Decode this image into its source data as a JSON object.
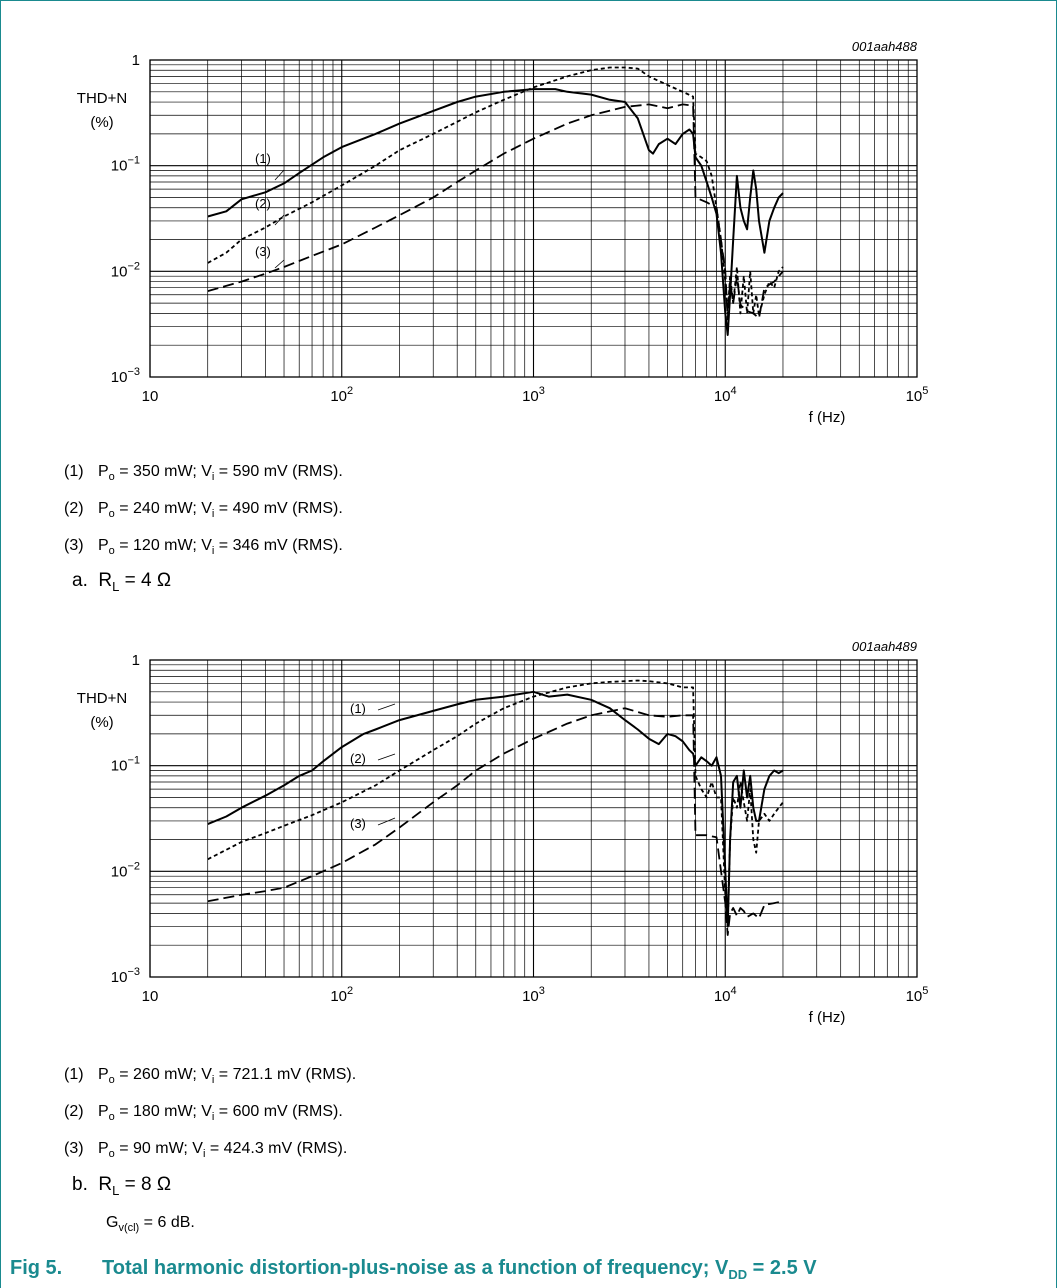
{
  "figure": {
    "number": "Fig 5.",
    "title": "Total harmonic distortion-plus-noise as a function of frequency; V",
    "title_sub": "DD",
    "title_tail": " = 2.5 V"
  },
  "chart_data": [
    {
      "type": "line",
      "id": "001aah488",
      "ylabel": "THD+N",
      "ylabel_unit": "(%)",
      "xlabel": "f (Hz)",
      "xscale": "log",
      "yscale": "log",
      "xlim": [
        10,
        100000
      ],
      "ylim": [
        0.001,
        1
      ],
      "x_ticks": [
        {
          "base": "10",
          "exp": ""
        },
        {
          "base": "10",
          "exp": "2"
        },
        {
          "base": "10",
          "exp": "3"
        },
        {
          "base": "10",
          "exp": "4"
        },
        {
          "base": "10",
          "exp": "5"
        }
      ],
      "y_ticks": [
        {
          "base": "1",
          "exp": ""
        },
        {
          "base": "10",
          "exp": "−1"
        },
        {
          "base": "10",
          "exp": "−2"
        },
        {
          "base": "10",
          "exp": "−3"
        }
      ],
      "grid": true,
      "series": [
        {
          "name": "(1)",
          "style": "solid",
          "x": [
            20,
            25,
            30,
            40,
            50,
            60,
            80,
            100,
            150,
            200,
            300,
            400,
            500,
            700,
            1000,
            1300,
            1500,
            2000,
            2500,
            3000,
            3500,
            4000,
            4200,
            4500,
            5000,
            5500,
            6000,
            6500,
            6800,
            7000,
            7500,
            8000,
            8500,
            9000,
            9500,
            10000,
            10300,
            10600,
            11000,
            11500,
            12000,
            12500,
            13000,
            13500,
            14000,
            14500,
            15000,
            16000,
            17000,
            18000,
            19000,
            20000
          ],
          "y": [
            0.033,
            0.037,
            0.048,
            0.056,
            0.068,
            0.085,
            0.12,
            0.15,
            0.2,
            0.25,
            0.33,
            0.4,
            0.45,
            0.5,
            0.53,
            0.53,
            0.5,
            0.47,
            0.42,
            0.4,
            0.28,
            0.14,
            0.13,
            0.16,
            0.18,
            0.16,
            0.2,
            0.22,
            0.2,
            0.12,
            0.1,
            0.07,
            0.05,
            0.035,
            0.015,
            0.004,
            0.0025,
            0.006,
            0.02,
            0.08,
            0.04,
            0.03,
            0.025,
            0.05,
            0.09,
            0.06,
            0.03,
            0.015,
            0.03,
            0.04,
            0.05,
            0.055
          ]
        },
        {
          "name": "(2)",
          "style": "dotted",
          "x": [
            20,
            25,
            30,
            40,
            50,
            70,
            100,
            150,
            200,
            300,
            400,
            500,
            700,
            1000,
            1500,
            2000,
            2500,
            3000,
            3500,
            4000,
            5000,
            6000,
            6800,
            7000,
            7500,
            8000,
            8500,
            9000,
            9500,
            10000,
            10300,
            10600,
            11000,
            11500,
            12000,
            12500,
            13000,
            13500,
            14000,
            14500,
            15000,
            16000,
            17000,
            18000,
            19000,
            20000
          ],
          "y": [
            0.012,
            0.015,
            0.02,
            0.026,
            0.033,
            0.045,
            0.065,
            0.1,
            0.14,
            0.2,
            0.26,
            0.32,
            0.42,
            0.55,
            0.7,
            0.8,
            0.85,
            0.85,
            0.83,
            0.7,
            0.58,
            0.5,
            0.45,
            0.13,
            0.12,
            0.11,
            0.08,
            0.04,
            0.02,
            0.008,
            0.004,
            0.009,
            0.005,
            0.011,
            0.004,
            0.009,
            0.004,
            0.01,
            0.004,
            0.006,
            0.0038,
            0.006,
            0.008,
            0.007,
            0.01,
            0.011
          ]
        },
        {
          "name": "(3)",
          "style": "dashed",
          "x": [
            20,
            30,
            40,
            50,
            70,
            100,
            150,
            200,
            300,
            400,
            500,
            700,
            1000,
            1500,
            2000,
            3000,
            4000,
            5000,
            6000,
            6800,
            7000,
            8000,
            9000,
            10000,
            10300,
            10600,
            11000,
            11500,
            12000,
            12500,
            13000,
            14000,
            15000,
            16000,
            18000,
            20000
          ],
          "y": [
            0.0065,
            0.008,
            0.0095,
            0.011,
            0.014,
            0.018,
            0.026,
            0.034,
            0.05,
            0.07,
            0.09,
            0.13,
            0.18,
            0.25,
            0.3,
            0.36,
            0.38,
            0.35,
            0.38,
            0.37,
            0.05,
            0.045,
            0.04,
            0.01,
            0.0035,
            0.008,
            0.005,
            0.009,
            0.0048,
            0.0045,
            0.0042,
            0.004,
            0.0036,
            0.007,
            0.008,
            0.01
          ]
        }
      ],
      "notes": [
        {
          "num": "(1)",
          "text": "P_o = 350 mW; V_i = 590 mV (RMS)."
        },
        {
          "num": "(2)",
          "text": "P_o = 240 mW; V_i = 490 mV (RMS)."
        },
        {
          "num": "(3)",
          "text": "P_o = 120 mW; V_i = 346 mV (RMS)."
        }
      ],
      "caption_letter": "a.",
      "caption_r": "R",
      "caption_r_sub": "L",
      "caption_value": " = 4 Ω"
    },
    {
      "type": "line",
      "id": "001aah489",
      "ylabel": "THD+N",
      "ylabel_unit": "(%)",
      "xlabel": "f (Hz)",
      "xscale": "log",
      "yscale": "log",
      "xlim": [
        10,
        100000
      ],
      "ylim": [
        0.001,
        1
      ],
      "x_ticks": [
        {
          "base": "10",
          "exp": ""
        },
        {
          "base": "10",
          "exp": "2"
        },
        {
          "base": "10",
          "exp": "3"
        },
        {
          "base": "10",
          "exp": "4"
        },
        {
          "base": "10",
          "exp": "5"
        }
      ],
      "y_ticks": [
        {
          "base": "1",
          "exp": ""
        },
        {
          "base": "10",
          "exp": "−1"
        },
        {
          "base": "10",
          "exp": "−2"
        },
        {
          "base": "10",
          "exp": "−3"
        }
      ],
      "grid": true,
      "series": [
        {
          "name": "(1)",
          "style": "solid",
          "x": [
            20,
            25,
            30,
            40,
            50,
            60,
            70,
            80,
            100,
            130,
            150,
            200,
            300,
            400,
            500,
            700,
            1000,
            1200,
            1500,
            2000,
            2500,
            3000,
            3500,
            4000,
            4500,
            5000,
            5500,
            6000,
            6500,
            6800,
            7000,
            7500,
            8000,
            8500,
            9000,
            9500,
            10000,
            10300,
            10600,
            11000,
            11500,
            12000,
            12500,
            13000,
            13500,
            14000,
            14500,
            15000,
            16000,
            17000,
            18000,
            19000,
            20000
          ],
          "y": [
            0.028,
            0.033,
            0.04,
            0.052,
            0.065,
            0.08,
            0.09,
            0.11,
            0.15,
            0.2,
            0.22,
            0.27,
            0.33,
            0.38,
            0.42,
            0.45,
            0.5,
            0.45,
            0.47,
            0.42,
            0.35,
            0.27,
            0.22,
            0.18,
            0.16,
            0.2,
            0.19,
            0.17,
            0.14,
            0.13,
            0.1,
            0.12,
            0.11,
            0.1,
            0.12,
            0.08,
            0.01,
            0.003,
            0.02,
            0.07,
            0.08,
            0.04,
            0.09,
            0.05,
            0.08,
            0.04,
            0.03,
            0.03,
            0.06,
            0.08,
            0.09,
            0.085,
            0.09
          ]
        },
        {
          "name": "(2)",
          "style": "dotted",
          "x": [
            20,
            25,
            30,
            40,
            50,
            70,
            100,
            150,
            200,
            300,
            400,
            500,
            700,
            1000,
            1500,
            2000,
            2500,
            3000,
            3500,
            4000,
            5000,
            6000,
            6800,
            7000,
            7500,
            8000,
            8500,
            9000,
            9500,
            10000,
            10300,
            10600,
            11000,
            11500,
            12000,
            12500,
            13000,
            13500,
            14000,
            14500,
            15000,
            16000,
            17000,
            18000,
            19000,
            20000
          ],
          "y": [
            0.013,
            0.016,
            0.019,
            0.023,
            0.027,
            0.034,
            0.045,
            0.065,
            0.09,
            0.14,
            0.19,
            0.25,
            0.35,
            0.45,
            0.55,
            0.6,
            0.62,
            0.63,
            0.64,
            0.63,
            0.6,
            0.55,
            0.55,
            0.08,
            0.06,
            0.05,
            0.07,
            0.05,
            0.05,
            0.006,
            0.003,
            0.02,
            0.05,
            0.04,
            0.07,
            0.045,
            0.03,
            0.06,
            0.02,
            0.015,
            0.03,
            0.035,
            0.03,
            0.035,
            0.04,
            0.045
          ]
        },
        {
          "name": "(3)",
          "style": "dashed",
          "x": [
            20,
            30,
            40,
            50,
            70,
            100,
            150,
            200,
            300,
            400,
            500,
            700,
            1000,
            1500,
            2000,
            3000,
            4000,
            5000,
            6000,
            6800,
            7000,
            8000,
            9000,
            10000,
            10300,
            10600,
            11000,
            11500,
            12000,
            12500,
            13000,
            14000,
            15000,
            16000,
            18000,
            20000
          ],
          "y": [
            0.0052,
            0.006,
            0.0065,
            0.007,
            0.009,
            0.012,
            0.018,
            0.026,
            0.045,
            0.065,
            0.09,
            0.13,
            0.18,
            0.25,
            0.3,
            0.35,
            0.3,
            0.29,
            0.3,
            0.3,
            0.022,
            0.022,
            0.021,
            0.005,
            0.0025,
            0.004,
            0.0045,
            0.0038,
            0.0045,
            0.0042,
            0.0037,
            0.004,
            0.0036,
            0.0048,
            0.005,
            0.0052
          ]
        }
      ],
      "notes": [
        {
          "num": "(1)",
          "text": "P_o = 260 mW; V_i = 721.1 mV (RMS)."
        },
        {
          "num": "(2)",
          "text": "P_o = 180 mW; V_i = 600 mV (RMS)."
        },
        {
          "num": "(3)",
          "text": "P_o = 90 mW; V_i = 424.3 mV (RMS)."
        }
      ],
      "caption_letter": "b.",
      "caption_r": "R",
      "caption_r_sub": "L",
      "caption_value": " = 8 Ω",
      "gain_g": "G",
      "gain_sub": "v(cl)",
      "gain_value": " = 6 dB."
    }
  ]
}
